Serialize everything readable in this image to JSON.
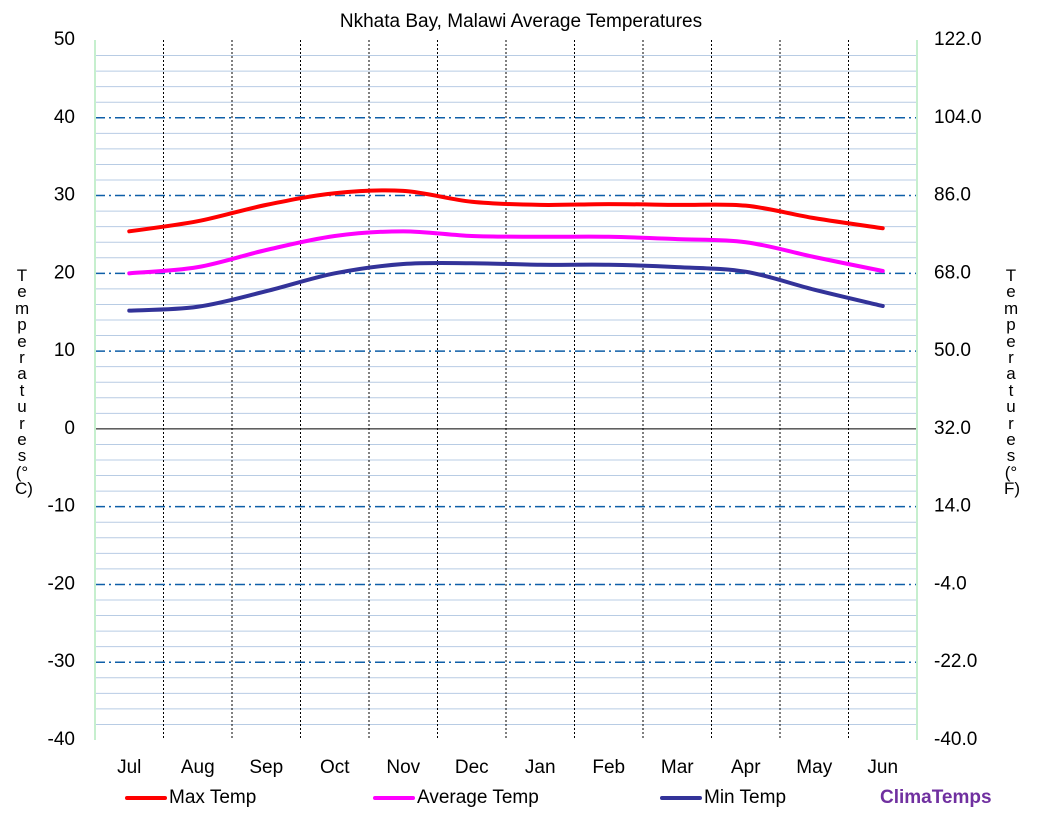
{
  "chart_data": {
    "type": "line",
    "title": "Nkhata Bay, Malawi Average Temperatures",
    "y_label": "Temperatures (°C)",
    "y2_label": "Temperatures (°F)",
    "watermark": "ClimaTemps",
    "categories": [
      "Jul",
      "Aug",
      "Sep",
      "Oct",
      "Nov",
      "Dec",
      "Jan",
      "Feb",
      "Mar",
      "Apr",
      "May",
      "Jun"
    ],
    "series": [
      {
        "name": "Max Temp",
        "color": "#ff0000",
        "values": [
          25.4,
          26.7,
          28.8,
          30.3,
          30.6,
          29.2,
          28.8,
          28.9,
          28.8,
          28.7,
          27.1,
          25.8
        ]
      },
      {
        "name": "Average Temp",
        "color": "#ff00ff",
        "values": [
          20.0,
          20.8,
          23.0,
          24.8,
          25.4,
          24.8,
          24.7,
          24.7,
          24.4,
          24.0,
          22.1,
          20.3
        ]
      },
      {
        "name": "Min Temp",
        "color": "#333399",
        "values": [
          15.2,
          15.7,
          17.7,
          20.0,
          21.2,
          21.3,
          21.1,
          21.1,
          20.8,
          20.2,
          17.9,
          15.8
        ]
      }
    ],
    "ylim": [
      -40,
      50
    ],
    "yticks": [
      -40,
      -30,
      -20,
      -10,
      0,
      10,
      20,
      30,
      40,
      50
    ],
    "y2lim": [
      -40,
      122
    ],
    "y2ticks": [
      {
        "value": -40,
        "label": "-40.0"
      },
      {
        "value": -22,
        "label": "-22.0"
      },
      {
        "value": -4,
        "label": "-4.0"
      },
      {
        "value": 14,
        "label": "14.0"
      },
      {
        "value": 32,
        "label": "32.0"
      },
      {
        "value": 50,
        "label": "50.0"
      },
      {
        "value": 68,
        "label": "68.0"
      },
      {
        "value": 86,
        "label": "86.0"
      },
      {
        "value": 104,
        "label": "104.0"
      },
      {
        "value": 122,
        "label": "122.0"
      }
    ],
    "grid": true,
    "legend": "bottom"
  }
}
